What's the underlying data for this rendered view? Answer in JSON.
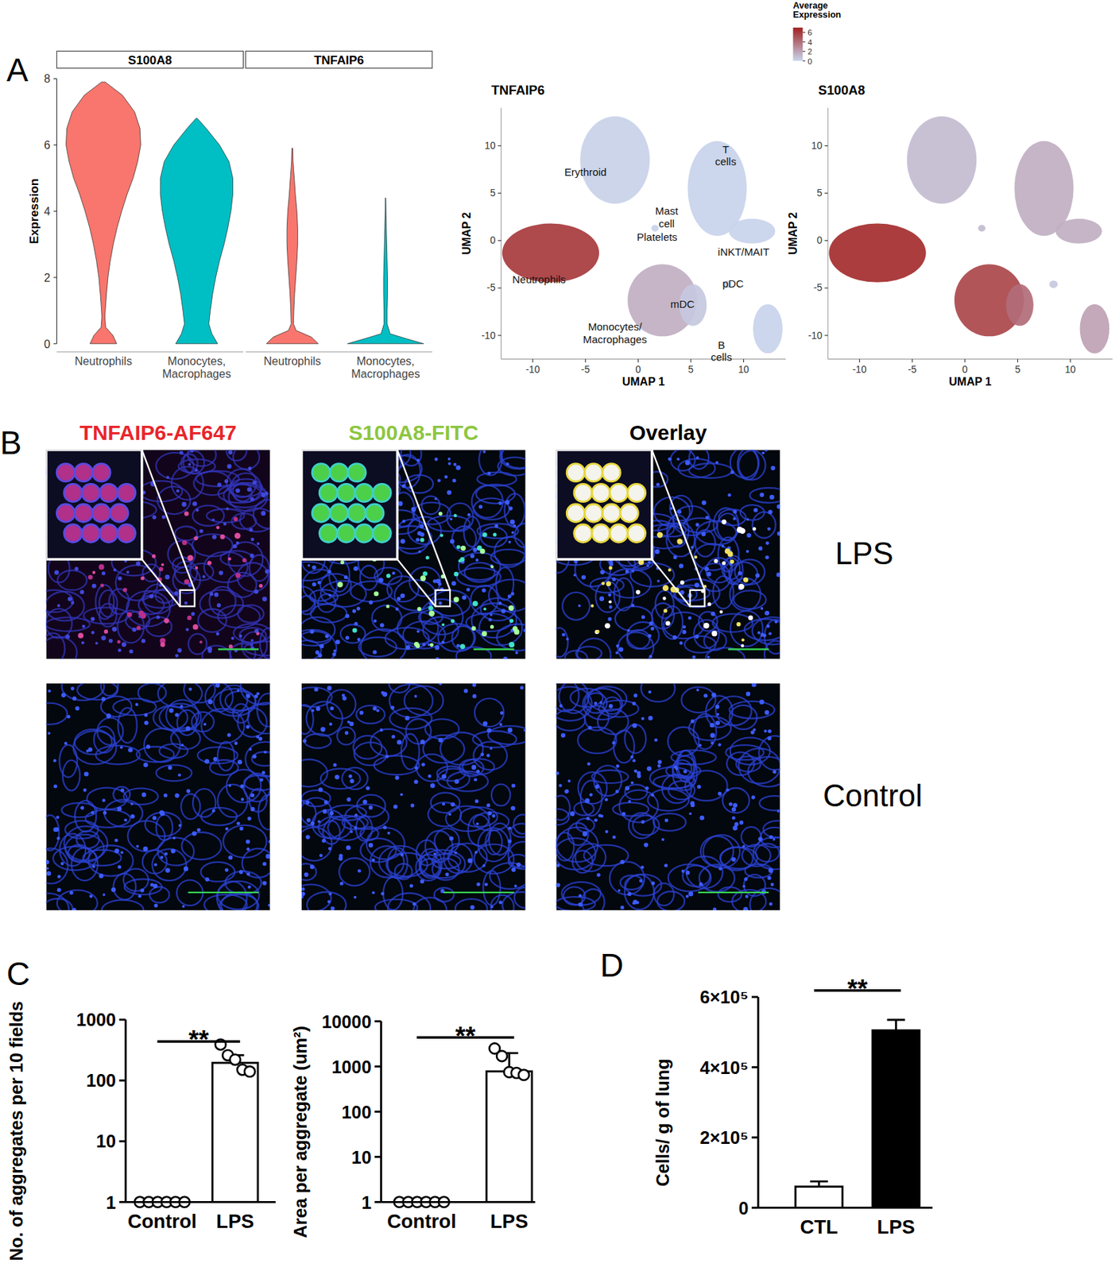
{
  "panel_labels": [
    "A",
    "B",
    "C",
    "D"
  ],
  "chart_data": [
    {
      "type": "violin",
      "title": "S100A8",
      "ylabel": "Expression",
      "categories": [
        "Neutrophils",
        "Monocytes, Macrophages"
      ],
      "colors": [
        "#f8766d",
        "#00bfc4"
      ],
      "ylim": [
        0,
        8
      ],
      "yticks": [
        0,
        2,
        4,
        6,
        8
      ],
      "density": [
        {
          "y": [
            0,
            0.25,
            0.5,
            0.8,
            1,
            1.5,
            2,
            2.5,
            3,
            3.5,
            4,
            4.5,
            5,
            5.5,
            6,
            6.5,
            7,
            7.5,
            7.9
          ],
          "width": [
            0.35,
            0.25,
            0.06,
            0.04,
            0.05,
            0.08,
            0.12,
            0.18,
            0.26,
            0.36,
            0.48,
            0.62,
            0.78,
            0.9,
            0.98,
            0.96,
            0.82,
            0.5,
            0.05
          ]
        },
        {
          "y": [
            0,
            0.3,
            0.6,
            1,
            1.5,
            2,
            2.5,
            3,
            3.5,
            4,
            4.5,
            5,
            5.5,
            6,
            6.5,
            6.8
          ],
          "width": [
            0.55,
            0.4,
            0.32,
            0.36,
            0.42,
            0.5,
            0.6,
            0.72,
            0.82,
            0.9,
            0.95,
            0.95,
            0.85,
            0.6,
            0.25,
            0.02
          ]
        }
      ]
    },
    {
      "type": "violin",
      "title": "TNFAIP6",
      "categories": [
        "Neutrophils",
        "Monocytes, Macrophages"
      ],
      "colors": [
        "#f8766d",
        "#00bfc4"
      ],
      "ylim": [
        0,
        8
      ],
      "tick_labels": "x",
      "density": [
        {
          "y": [
            0,
            0.2,
            0.4,
            0.6,
            1,
            1.5,
            2,
            2.5,
            3,
            3.5,
            4,
            4.5,
            5,
            5.5,
            5.9
          ],
          "width": [
            0.68,
            0.5,
            0.1,
            0.03,
            0.04,
            0.06,
            0.09,
            0.12,
            0.14,
            0.14,
            0.12,
            0.08,
            0.05,
            0.02,
            0.01
          ]
        },
        {
          "y": [
            0,
            0.15,
            0.3,
            0.6,
            1,
            1.5,
            2,
            2.5,
            3,
            3.5,
            4,
            4.4
          ],
          "width": [
            1,
            0.55,
            0.12,
            0.04,
            0.04,
            0.05,
            0.05,
            0.04,
            0.03,
            0.02,
            0.01,
            0.005
          ]
        }
      ]
    },
    {
      "type": "umap",
      "title": "TNFAIP6",
      "xlabel": "UMAP 1",
      "ylabel": "UMAP 2",
      "xlim": [
        -13,
        14
      ],
      "ylim": [
        -12.5,
        14
      ],
      "xticks": [
        -10,
        -5,
        0,
        5,
        10
      ],
      "yticks": [
        -10,
        -5,
        0,
        5,
        10
      ],
      "colorbar": {
        "title": "Average Expression",
        "range": [
          0,
          7
        ],
        "ticks": [
          0,
          2,
          4,
          6
        ],
        "colors": [
          "#c9d6ee",
          "#a11f1f"
        ]
      },
      "clusters": [
        {
          "x": -2.2,
          "y": 8.5,
          "rx": 3.3,
          "ry": 4.6,
          "expression": 0.2
        },
        {
          "x": -8.3,
          "y": -1.3,
          "rx": 4.6,
          "ry": 3.1,
          "expression": 6
        },
        {
          "x": 2.3,
          "y": -6.3,
          "rx": 3.3,
          "ry": 3.8,
          "expression": 1.5
        },
        {
          "x": 5.2,
          "y": -6.8,
          "rx": 1.3,
          "ry": 2.2,
          "expression": 0.5
        },
        {
          "x": 7.5,
          "y": 5.5,
          "rx": 2.8,
          "ry": 5,
          "expression": 0.1
        },
        {
          "x": 10.8,
          "y": 1,
          "rx": 2.2,
          "ry": 1.3,
          "expression": 0.1
        },
        {
          "x": 12.3,
          "y": -9.3,
          "rx": 1.4,
          "ry": 2.6,
          "expression": 0.1
        },
        {
          "x": 8.4,
          "y": -4.6,
          "rx": 0.4,
          "ry": 0.4,
          "expression": 0.1
        },
        {
          "x": 1.6,
          "y": 1.3,
          "rx": 0.35,
          "ry": 0.35,
          "expression": 0.1
        }
      ],
      "labels": [
        {
          "text": "Erythroid",
          "x": -5,
          "y": 6.8
        },
        {
          "text": "T cells",
          "x": 8.3,
          "y": 9.2
        },
        {
          "text": "Mast cell",
          "x": 2.7,
          "y": 2.7
        },
        {
          "text": "Platelets",
          "x": 1.8,
          "y": 0
        },
        {
          "text": "iNKT/MAIT",
          "x": 10,
          "y": -1.6
        },
        {
          "text": "Neutrophils",
          "x": -9.4,
          "y": -4.5
        },
        {
          "text": "pDC",
          "x": 9,
          "y": -4.9
        },
        {
          "text": "mDC",
          "x": 4.2,
          "y": -7.1
        },
        {
          "text": "Monocytes/ Macrophages",
          "x": -2.2,
          "y": -9.5
        },
        {
          "text": "B cells",
          "x": 7.9,
          "y": -11.4
        }
      ]
    },
    {
      "type": "umap",
      "title": "S100A8",
      "xlabel": "UMAP 1",
      "ylabel": "UMAP 2",
      "xlim": [
        -13,
        14
      ],
      "ylim": [
        -12.5,
        14
      ],
      "xticks": [
        -10,
        -5,
        0,
        5,
        10
      ],
      "yticks": [
        -10,
        -5,
        0,
        5,
        10
      ],
      "clusters": [
        {
          "x": -2.2,
          "y": 8.5,
          "rx": 3.3,
          "ry": 4.6,
          "expression": 1
        },
        {
          "x": -8.3,
          "y": -1.3,
          "rx": 4.6,
          "ry": 3.1,
          "expression": 6.5
        },
        {
          "x": 2.3,
          "y": -6.3,
          "rx": 3.3,
          "ry": 3.8,
          "expression": 5.5
        },
        {
          "x": 5.2,
          "y": -6.8,
          "rx": 1.3,
          "ry": 2.2,
          "expression": 4
        },
        {
          "x": 7.5,
          "y": 5.5,
          "rx": 2.8,
          "ry": 5,
          "expression": 1.5
        },
        {
          "x": 10.8,
          "y": 1,
          "rx": 2.2,
          "ry": 1.3,
          "expression": 1.5
        },
        {
          "x": 12.3,
          "y": -9.3,
          "rx": 1.4,
          "ry": 2.6,
          "expression": 2
        },
        {
          "x": 8.4,
          "y": -4.6,
          "rx": 0.4,
          "ry": 0.4,
          "expression": 0.5
        },
        {
          "x": 1.6,
          "y": 1.3,
          "rx": 0.35,
          "ry": 0.35,
          "expression": 1
        }
      ]
    },
    {
      "type": "bar",
      "ylabel": "No. of aggregates per 10 fields",
      "categories": [
        "Control",
        "LPS"
      ],
      "values": [
        1,
        195
      ],
      "errors": [
        0,
        65
      ],
      "points": [
        [
          1,
          1,
          1,
          1,
          1,
          1
        ],
        [
          390,
          260,
          220,
          150,
          140
        ]
      ],
      "color": "#ffffff",
      "log": "y",
      "ylim": [
        1,
        1000
      ],
      "yticks": [
        1,
        10,
        100,
        1000
      ],
      "annotations": [
        "**"
      ]
    },
    {
      "type": "bar",
      "ylabel": "Area per aggregate (um²)",
      "categories": [
        "Control",
        "LPS"
      ],
      "values": [
        1,
        780
      ],
      "errors": [
        0,
        1200
      ],
      "points": [
        [
          1,
          1,
          1,
          1,
          1,
          1
        ],
        [
          2500,
          1700,
          750,
          720,
          650
        ]
      ],
      "color": "#ffffff",
      "log": "y",
      "ylim": [
        1,
        10000
      ],
      "yticks": [
        1,
        10,
        100,
        1000,
        10000
      ],
      "annotations": [
        "**"
      ]
    },
    {
      "type": "bar",
      "ylabel": "Cells/ g of lung",
      "categories": [
        "CTL",
        "LPS"
      ],
      "values": [
        60000,
        505000
      ],
      "errors": [
        15000,
        30000
      ],
      "colors": [
        "#ffffff",
        "#000000"
      ],
      "ylim": [
        0,
        600000
      ],
      "yticks": [
        0,
        {
          "value": 200000,
          "label": "2×10⁵"
        },
        {
          "value": 400000,
          "label": "4×10⁵"
        },
        {
          "value": 600000,
          "label": "6×10⁵"
        }
      ],
      "annotations": [
        "**"
      ]
    }
  ],
  "microscopy": {
    "columns": [
      {
        "label": "TNFAIP6-AF647",
        "color": "#e8252b"
      },
      {
        "label": "S100A8-FITC",
        "color": "#8dc63f"
      },
      {
        "label": "Overlay",
        "color": "#000000"
      }
    ],
    "rows": [
      "LPS",
      "Control"
    ]
  }
}
